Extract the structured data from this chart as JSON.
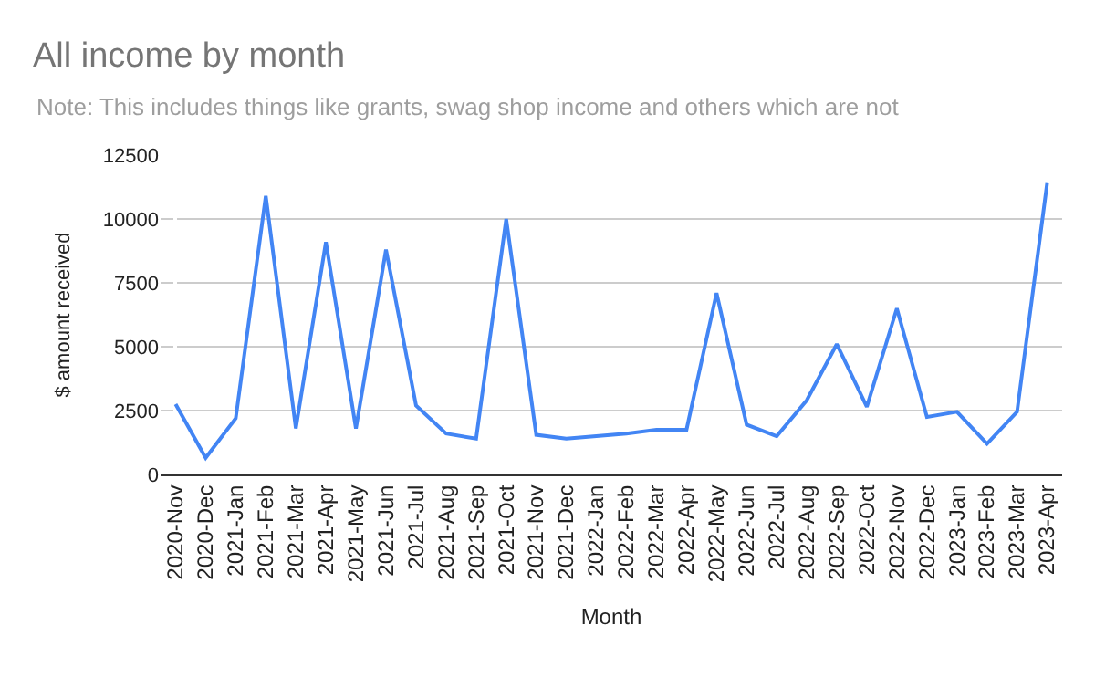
{
  "chart_data": {
    "type": "line",
    "title": "All income by month",
    "subtitle": "Note: This includes things like grants, swag shop income and others which are not",
    "xlabel": "Month",
    "ylabel": "$ amount received",
    "categories": [
      "2020-Nov",
      "2020-Dec",
      "2021-Jan",
      "2021-Feb",
      "2021-Mar",
      "2021-Apr",
      "2021-May",
      "2021-Jun",
      "2021-Jul",
      "2021-Aug",
      "2021-Sep",
      "2021-Oct",
      "2021-Nov",
      "2021-Dec",
      "2022-Jan",
      "2022-Feb",
      "2022-Mar",
      "2022-Apr",
      "2022-May",
      "2022-Jun",
      "2022-Jul",
      "2022-Aug",
      "2022-Sep",
      "2022-Oct",
      "2022-Nov",
      "2022-Dec",
      "2023-Jan",
      "2023-Feb",
      "2023-Mar",
      "2023-Apr"
    ],
    "series": [
      {
        "color": "#4285f4",
        "values": [
          2750,
          650,
          2200,
          10900,
          1800,
          9100,
          1800,
          8800,
          2700,
          1600,
          1400,
          10000,
          1550,
          1400,
          1500,
          1600,
          1750,
          1750,
          7100,
          1950,
          1500,
          2900,
          5100,
          2650,
          6500,
          2250,
          2450,
          1200,
          2450,
          11400
        ]
      }
    ],
    "ylim": [
      0,
      12500
    ],
    "yticks": [
      0,
      2500,
      5000,
      7500,
      10000,
      12500
    ],
    "grid": "y",
    "marker": "none",
    "line_style": "solid"
  }
}
